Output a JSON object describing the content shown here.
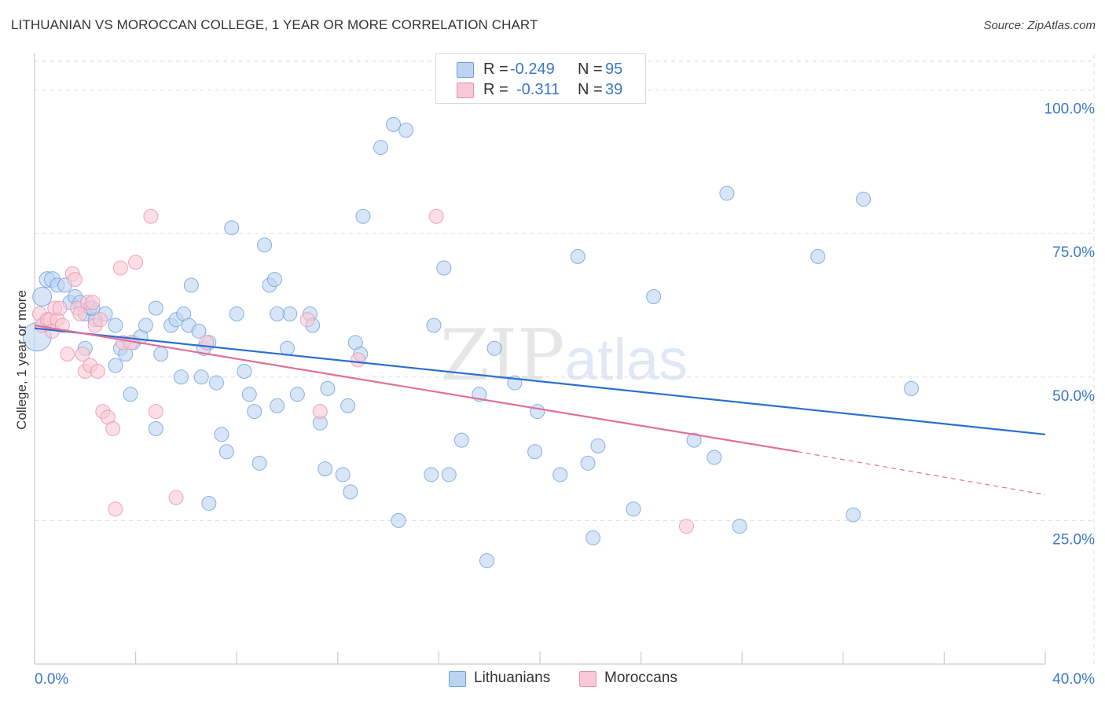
{
  "header": {
    "title": "LITHUANIAN VS MOROCCAN COLLEGE, 1 YEAR OR MORE CORRELATION CHART",
    "source": "Source: ZipAtlas.com"
  },
  "watermark": {
    "zip": "ZIP",
    "atlas": "atlas"
  },
  "legend_top": {
    "rows": [
      {
        "r_label": "R =",
        "r_value": "-0.249",
        "n_label": "N =",
        "n_value": "95"
      },
      {
        "r_label": "R =",
        "r_value": "-0.311",
        "n_label": "N =",
        "n_value": "39"
      }
    ]
  },
  "legend_bottom": {
    "items": [
      "Lithuanians",
      "Moroccans"
    ]
  },
  "colors": {
    "blue_fill": "#bcd4f2",
    "blue_stroke": "#6c9fdc",
    "blue_line": "#2a6fd0",
    "pink_fill": "#f8c8d6",
    "pink_stroke": "#ea90ad",
    "pink_line": "#e07098",
    "grid": "#dddddd",
    "tick_text": "#3a78c8"
  },
  "chart_data": {
    "type": "scatter",
    "title": "LITHUANIAN VS MOROCCAN COLLEGE, 1 YEAR OR MORE CORRELATION CHART",
    "xlabel": "",
    "ylabel": "College, 1 year or more",
    "xlim": [
      0,
      40
    ],
    "ylim": [
      0,
      105
    ],
    "x_tick_labels": [
      "0.0%",
      "40.0%"
    ],
    "y_ticks": [
      {
        "value": 25,
        "label": "25.0%"
      },
      {
        "value": 50,
        "label": "50.0%"
      },
      {
        "value": 75,
        "label": "75.0%"
      },
      {
        "value": 100,
        "label": "100.0%"
      }
    ],
    "series": [
      {
        "name": "Lithuanians",
        "R": -0.249,
        "N": 95,
        "trend": {
          "x0": 0,
          "y0": 58.5,
          "x1": 40,
          "y1": 40.0
        },
        "points": [
          [
            0.1,
            57,
            18
          ],
          [
            0.3,
            64,
            12
          ],
          [
            0.5,
            67,
            10
          ],
          [
            0.7,
            67,
            10
          ],
          [
            0.9,
            66,
            9
          ],
          [
            1.2,
            66,
            9
          ],
          [
            1.4,
            63,
            9
          ],
          [
            1.6,
            64,
            9
          ],
          [
            1.8,
            63,
            9
          ],
          [
            2.0,
            61,
            9
          ],
          [
            2.2,
            62,
            9
          ],
          [
            2.4,
            60,
            9
          ],
          [
            2.8,
            61,
            9
          ],
          [
            2.0,
            55,
            9
          ],
          [
            3.2,
            59,
            9
          ],
          [
            3.4,
            55,
            9
          ],
          [
            3.6,
            54,
            9
          ],
          [
            3.9,
            56,
            9
          ],
          [
            4.2,
            57,
            9
          ],
          [
            4.4,
            59,
            9
          ],
          [
            4.8,
            62,
            9
          ],
          [
            5.0,
            54,
            9
          ],
          [
            5.4,
            59,
            9
          ],
          [
            5.6,
            60,
            9
          ],
          [
            5.9,
            61,
            9
          ],
          [
            6.1,
            59,
            9
          ],
          [
            6.2,
            66,
            9
          ],
          [
            6.7,
            55,
            9
          ],
          [
            6.9,
            56,
            9
          ],
          [
            7.2,
            49,
            9
          ],
          [
            3.2,
            52,
            9
          ],
          [
            3.8,
            47,
            9
          ],
          [
            4.8,
            41,
            9
          ],
          [
            5.8,
            50,
            9
          ],
          [
            6.6,
            50,
            9
          ],
          [
            7.4,
            40,
            9
          ],
          [
            7.6,
            37,
            9
          ],
          [
            6.9,
            28,
            9
          ],
          [
            8.0,
            61,
            9
          ],
          [
            8.3,
            51,
            9
          ],
          [
            8.5,
            47,
            9
          ],
          [
            8.7,
            44,
            9
          ],
          [
            8.9,
            35,
            9
          ],
          [
            7.8,
            76,
            9
          ],
          [
            9.1,
            73,
            9
          ],
          [
            9.3,
            66,
            9
          ],
          [
            9.5,
            67,
            9
          ],
          [
            9.6,
            45,
            9
          ],
          [
            10.0,
            55,
            9
          ],
          [
            10.1,
            61,
            9
          ],
          [
            10.4,
            47,
            9
          ],
          [
            10.9,
            61,
            9
          ],
          [
            11.0,
            59,
            9
          ],
          [
            11.3,
            42,
            9
          ],
          [
            11.5,
            34,
            9
          ],
          [
            11.6,
            48,
            9
          ],
          [
            12.2,
            33,
            9
          ],
          [
            12.4,
            45,
            9
          ],
          [
            12.5,
            30,
            9
          ],
          [
            12.7,
            56,
            9
          ],
          [
            12.9,
            54,
            9
          ],
          [
            13.0,
            78,
            9
          ],
          [
            13.7,
            90,
            9
          ],
          [
            14.2,
            94,
            9
          ],
          [
            14.7,
            93,
            9
          ],
          [
            14.4,
            25,
            9
          ],
          [
            15.7,
            33,
            9
          ],
          [
            15.8,
            59,
            9
          ],
          [
            16.2,
            69,
            9
          ],
          [
            16.4,
            33,
            9
          ],
          [
            16.9,
            39,
            9
          ],
          [
            17.6,
            47,
            9
          ],
          [
            17.9,
            18,
            9
          ],
          [
            18.2,
            55,
            9
          ],
          [
            19.0,
            49,
            9
          ],
          [
            19.8,
            37,
            9
          ],
          [
            19.9,
            44,
            9
          ],
          [
            20.8,
            33,
            9
          ],
          [
            21.5,
            71,
            9
          ],
          [
            21.9,
            35,
            9
          ],
          [
            22.1,
            22,
            9
          ],
          [
            22.3,
            38,
            9
          ],
          [
            23.7,
            27,
            9
          ],
          [
            24.5,
            64,
            9
          ],
          [
            26.1,
            39,
            9
          ],
          [
            26.9,
            36,
            9
          ],
          [
            27.4,
            82,
            9
          ],
          [
            27.9,
            24,
            9
          ],
          [
            31.0,
            71,
            9
          ],
          [
            32.4,
            26,
            9
          ],
          [
            32.8,
            81,
            9
          ],
          [
            34.7,
            48,
            9
          ],
          [
            2.3,
            62,
            9
          ],
          [
            9.6,
            61,
            9
          ],
          [
            6.5,
            58,
            9
          ]
        ]
      },
      {
        "name": "Moroccans",
        "R": -0.311,
        "N": 39,
        "trend": {
          "x0": 0,
          "y0": 59.0,
          "x1": 30.2,
          "y1": 37.0,
          "dash_x1": 40,
          "dash_y1": 29.5
        },
        "points": [
          [
            0.2,
            61,
            9
          ],
          [
            0.3,
            59,
            9
          ],
          [
            0.5,
            60,
            9
          ],
          [
            0.6,
            60,
            9
          ],
          [
            0.7,
            58,
            9
          ],
          [
            0.8,
            62,
            9
          ],
          [
            0.9,
            60,
            9
          ],
          [
            1.0,
            62,
            9
          ],
          [
            1.1,
            59,
            9
          ],
          [
            1.3,
            54,
            9
          ],
          [
            1.5,
            68,
            9
          ],
          [
            1.6,
            67,
            9
          ],
          [
            1.7,
            62,
            9
          ],
          [
            1.8,
            61,
            9
          ],
          [
            1.9,
            54,
            9
          ],
          [
            2.0,
            51,
            9
          ],
          [
            2.1,
            63,
            9
          ],
          [
            2.2,
            52,
            9
          ],
          [
            2.3,
            63,
            9
          ],
          [
            2.4,
            59,
            9
          ],
          [
            2.5,
            51,
            9
          ],
          [
            2.6,
            60,
            9
          ],
          [
            2.7,
            44,
            9
          ],
          [
            2.9,
            43,
            9
          ],
          [
            3.1,
            41,
            9
          ],
          [
            3.2,
            27,
            9
          ],
          [
            3.4,
            69,
            9
          ],
          [
            3.5,
            56,
            9
          ],
          [
            3.8,
            56,
            9
          ],
          [
            4.0,
            70,
            9
          ],
          [
            4.6,
            78,
            9
          ],
          [
            4.8,
            44,
            9
          ],
          [
            5.6,
            29,
            9
          ],
          [
            6.8,
            56,
            9
          ],
          [
            10.8,
            60,
            9
          ],
          [
            11.3,
            44,
            9
          ],
          [
            12.8,
            53,
            9
          ],
          [
            15.9,
            78,
            9
          ],
          [
            25.8,
            24,
            9
          ]
        ]
      }
    ]
  }
}
